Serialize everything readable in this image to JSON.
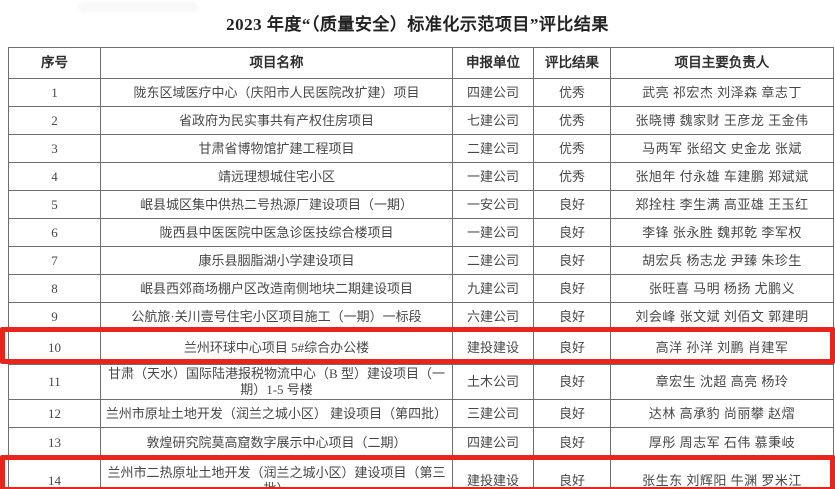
{
  "title": "2023 年度“（质量安全）标准化示范项目”评比结果",
  "highlight_color": "#e8251c",
  "table": {
    "columns": [
      "序号",
      "项目名称",
      "申报单位",
      "评比结果",
      "项目主要负责人"
    ],
    "rows": [
      {
        "no": "1",
        "project": "陇东区域医疗中心（庆阳市人民医院改扩建）项目",
        "unit": "四建公司",
        "result": "优秀",
        "leaders": "武亮 祁宏杰 刘泽森 章志丁",
        "highlighted": false
      },
      {
        "no": "2",
        "project": "省政府为民实事共有产权住房项目",
        "unit": "七建公司",
        "result": "优秀",
        "leaders": "张晓博 魏家财 王彦龙 王金伟",
        "highlighted": false
      },
      {
        "no": "3",
        "project": "甘肃省博物馆扩建工程项目",
        "unit": "二建公司",
        "result": "优秀",
        "leaders": "马两军 张绍文 史金龙 张斌",
        "highlighted": false
      },
      {
        "no": "4",
        "project": "靖远理想城住宅小区",
        "unit": "一建公司",
        "result": "优秀",
        "leaders": "张旭年 付永雄 车建鹏 郑斌斌",
        "highlighted": false
      },
      {
        "no": "5",
        "project": "岷县城区集中供热二号热源厂建设项目（一期）",
        "unit": "一安公司",
        "result": "良好",
        "leaders": "郑拴柱 李生满 高亚雄 王玉红",
        "highlighted": false
      },
      {
        "no": "6",
        "project": "陇西县中医医院中医急诊医技综合楼项目",
        "unit": "一建公司",
        "result": "良好",
        "leaders": "李锋 张永胜 魏邦乾 李军权",
        "highlighted": false
      },
      {
        "no": "7",
        "project": "康乐县胭脂湖小学建设项目",
        "unit": "二建公司",
        "result": "良好",
        "leaders": "胡宏兵 杨志龙 尹臻 朱珍生",
        "highlighted": false
      },
      {
        "no": "8",
        "project": "岷县西郊商场棚户区改造南侧地块二期建设项目",
        "unit": "九建公司",
        "result": "良好",
        "leaders": "张旺喜 马明 杨扬 尤鹏义",
        "highlighted": false
      },
      {
        "no": "9",
        "project": "公航旅·关川壹号住宅小区项目施工（一期）一标段",
        "unit": "六建公司",
        "result": "良好",
        "leaders": "刘会峰 张文斌 刘佰文 郭建明",
        "highlighted": false
      },
      {
        "no": "10",
        "project": "兰州环球中心项目 5#综合办公楼",
        "unit": "建投建设",
        "result": "良好",
        "leaders": "高洋 孙洋 刘鹏 肖建军",
        "highlighted": true
      },
      {
        "no": "11",
        "project": "甘肃（天水）国际陆港报税物流中心（B 型）建设项目（一期）1-5 号楼",
        "unit": "土木公司",
        "result": "良好",
        "leaders": "章宏生 沈超 高亮 杨玲",
        "highlighted": false
      },
      {
        "no": "12",
        "project": "兰州市原址土地开发（润兰之城小区） 建设项目（第四批）",
        "unit": "三建公司",
        "result": "良好",
        "leaders": "达林 高承豹 尚丽攀 赵熠",
        "highlighted": false
      },
      {
        "no": "13",
        "project": "敦煌研究院莫高窟数字展示中心项目（二期）",
        "unit": "四建公司",
        "result": "良好",
        "leaders": "厚彤 周志军 石伟 慕秉岐",
        "highlighted": false
      },
      {
        "no": "14",
        "project": "兰州市二热原址土地开发（润兰之城小区）建设项目（第三批）",
        "unit": "建投建设",
        "result": "良好",
        "leaders": "张生东 刘辉阳 牛渊 罗米江",
        "highlighted": true
      }
    ]
  }
}
